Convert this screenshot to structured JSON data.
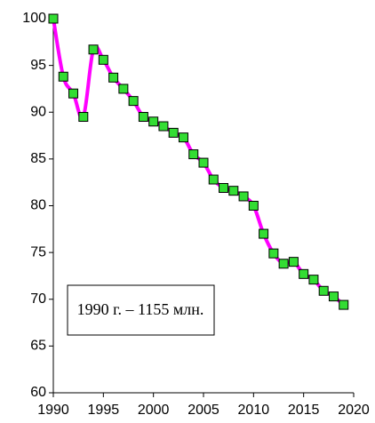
{
  "chart_data": {
    "type": "line",
    "x": [
      1990,
      1991,
      1992,
      1993,
      1994,
      1995,
      1996,
      1997,
      1998,
      1999,
      2000,
      2001,
      2002,
      2003,
      2004,
      2005,
      2006,
      2007,
      2008,
      2009,
      2010,
      2011,
      2012,
      2013,
      2014,
      2015,
      2016,
      2017,
      2018,
      2019
    ],
    "series": [
      {
        "color": "#ff00ff",
        "marker_color": "#33dd33",
        "values": [
          100,
          93.8,
          92.0,
          89.5,
          96.7,
          95.6,
          93.7,
          92.5,
          91.2,
          89.5,
          89.0,
          88.5,
          87.8,
          87.3,
          85.5,
          84.6,
          82.8,
          81.9,
          81.6,
          81.0,
          80.0,
          77.0,
          74.9,
          73.8,
          74.0,
          72.7,
          72.1,
          70.9,
          70.3,
          69.4
        ]
      }
    ],
    "xlim": [
      1990,
      2020
    ],
    "xticks": [
      1990,
      1995,
      2000,
      2005,
      2010,
      2015,
      2020
    ],
    "ylim": [
      60,
      100
    ],
    "yticks": [
      60,
      65,
      70,
      75,
      80,
      85,
      90,
      95,
      100
    ],
    "grid": false,
    "annotation": "1990 г. – 1155 млн."
  }
}
